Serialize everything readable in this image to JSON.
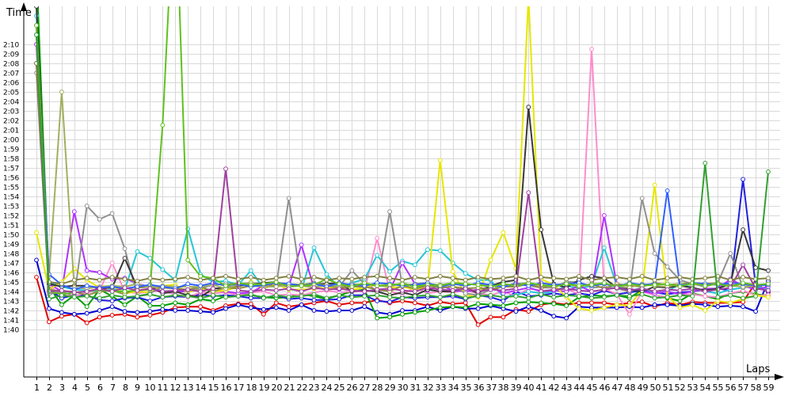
{
  "chart_data": {
    "type": "line",
    "title": "",
    "xlabel": "Laps",
    "ylabel": "Time",
    "x": [
      1,
      2,
      3,
      4,
      5,
      6,
      7,
      8,
      9,
      10,
      11,
      12,
      13,
      14,
      15,
      16,
      17,
      18,
      19,
      20,
      21,
      22,
      23,
      24,
      25,
      26,
      27,
      28,
      29,
      30,
      31,
      32,
      33,
      34,
      35,
      36,
      37,
      38,
      39,
      40,
      41,
      42,
      43,
      44,
      45,
      46,
      47,
      48,
      49,
      50,
      51,
      52,
      53,
      54,
      55,
      56,
      57,
      58,
      59
    ],
    "xlim": [
      1,
      59
    ],
    "ylim_seconds": [
      95,
      134
    ],
    "y_ticks_seconds": [
      100,
      101,
      102,
      103,
      104,
      105,
      106,
      107,
      108,
      109,
      110,
      111,
      112,
      113,
      114,
      115,
      116,
      117,
      118,
      119,
      120,
      121,
      122,
      123,
      124,
      125,
      126,
      127,
      128,
      129,
      130
    ],
    "y_tick_labels": [
      "1:40",
      "1:41",
      "1:42",
      "1:43",
      "1:44",
      "1:45",
      "1:46",
      "1:47",
      "1:48",
      "1:49",
      "1:50",
      "1:51",
      "1:52",
      "1:53",
      "1:54",
      "1:55",
      "1:56",
      "1:57",
      "1:58",
      "1:59",
      "2:00",
      "2:01",
      "2:02",
      "2:03",
      "2:04",
      "2:05",
      "2:06",
      "2:07",
      "2:08",
      "2:09",
      "2:10"
    ],
    "grid": true,
    "legend": "none",
    "series": [
      {
        "color": "#e00000",
        "values": [
          105.5,
          100.8,
          101.4,
          101.6,
          100.7,
          101.3,
          101.5,
          101.6,
          101.3,
          101.5,
          101.8,
          102.3,
          102.4,
          102.4,
          102.0,
          102.5,
          102.7,
          102.7,
          101.6,
          102.8,
          102.4,
          102.6,
          102.8,
          103.0,
          102.6,
          102.8,
          102.8,
          103.1,
          102.8,
          103.0,
          102.8,
          102.5,
          102.9,
          102.7,
          102.8,
          100.5,
          101.3,
          101.3,
          102.1,
          101.9,
          102.6,
          102.8,
          102.6,
          102.8,
          102.8,
          102.8,
          102.6,
          102.8,
          102.9,
          102.4,
          102.8,
          102.6,
          102.9,
          102.8,
          102.8,
          102.8,
          102.9,
          104.9,
          103.9
        ]
      },
      {
        "color": "#0000d0",
        "values": [
          107.3,
          102.2,
          101.8,
          101.6,
          101.7,
          102.0,
          102.4,
          101.9,
          101.8,
          101.9,
          102.1,
          102.0,
          102.0,
          101.9,
          101.8,
          102.2,
          102.6,
          102.3,
          102.1,
          102.3,
          102.0,
          102.6,
          102.0,
          101.9,
          102.0,
          102.0,
          102.4,
          101.8,
          101.6,
          102.0,
          102.0,
          102.4,
          102.0,
          102.4,
          102.2,
          102.2,
          102.5,
          102.2,
          101.9,
          102.4,
          102.0,
          101.4,
          101.2,
          102.4,
          102.3,
          102.3,
          102.3,
          102.4,
          102.3,
          102.6,
          102.6,
          102.5,
          102.7,
          102.6,
          102.4,
          102.5,
          102.4,
          101.9,
          105.1
        ]
      },
      {
        "color": "#009e00",
        "values": [
          138,
          104.5,
          102.6,
          103.6,
          102.4,
          104.2,
          103.5,
          102.6,
          103.5,
          102.5,
          102.5,
          102.8,
          102.6,
          103.2,
          103.0,
          103.5,
          103.6,
          103.6,
          103.4,
          103.3,
          103.4,
          103.7,
          103.5,
          103.2,
          103.6,
          104.0,
          104.2,
          101.2,
          101.3,
          101.6,
          101.8,
          102.0,
          102.3,
          102.4,
          102.3,
          102.7,
          102.6,
          102.5,
          102.8,
          102.9,
          102.8,
          102.7,
          102.5,
          103.4,
          103.6,
          103.5,
          103.6,
          103.3,
          104.2,
          103.6,
          103.3,
          103.0,
          103.8,
          103.5,
          103.2,
          103.8,
          104.0,
          103.7,
          103.6
        ]
      },
      {
        "color": "#2020e0",
        "values": [
          132,
          104.2,
          103.3,
          103.6,
          103.6,
          103.1,
          103.0,
          103.3,
          103.4,
          103.0,
          103.4,
          103.5,
          103.4,
          103.7,
          103.5,
          103.6,
          103.5,
          103.3,
          103.3,
          103.6,
          103.2,
          103.3,
          103.1,
          103.1,
          103.2,
          103.6,
          103.6,
          103.0,
          102.9,
          103.4,
          103.3,
          103.4,
          103.4,
          103.5,
          103.2,
          103.6,
          103.4,
          103.0,
          104.0,
          103.5,
          103.6,
          103.8,
          103.6,
          103.8,
          103.6,
          104.1,
          103.7,
          103.9,
          104.1,
          103.9,
          103.7,
          103.9,
          104.0,
          104.2,
          104.3,
          104.1,
          115.8,
          104.6,
          104.0
        ]
      },
      {
        "color": "#ff8ccc",
        "values": [
          130,
          104.6,
          103.6,
          103.5,
          103.9,
          104.1,
          107.0,
          104.0,
          103.8,
          104.0,
          104.0,
          103.7,
          103.4,
          103.9,
          103.8,
          103.9,
          103.6,
          103.9,
          104.0,
          103.6,
          103.7,
          103.6,
          103.9,
          104.1,
          103.9,
          104.0,
          104.0,
          109.6,
          104.0,
          103.7,
          104.4,
          103.8,
          104.0,
          103.9,
          104.1,
          103.8,
          103.6,
          104.0,
          103.5,
          104.3,
          104.1,
          104.1,
          104.3,
          103.7,
          129.5,
          104.3,
          103.7,
          101.6,
          104.0,
          103.6,
          103.4,
          103.6,
          103.7,
          103.5,
          103.4,
          103.8,
          104.1,
          103.6,
          103.6
        ]
      },
      {
        "color": "#26c6d6",
        "values": [
          133,
          105.0,
          104.5,
          104.2,
          104.1,
          104.0,
          104.2,
          104.2,
          108.2,
          107.5,
          106.3,
          105.2,
          110.6,
          105.8,
          105.0,
          105.1,
          104.7,
          106.2,
          104.3,
          104.8,
          104.2,
          104.1,
          108.6,
          105.8,
          104.4,
          104.9,
          105.3,
          107.8,
          106.1,
          107.2,
          106.8,
          108.4,
          108.3,
          107.0,
          105.9,
          105.2,
          105.2,
          103.4,
          103.6,
          104.0,
          103.8,
          104.0,
          104.6,
          104.3,
          104.6,
          108.6,
          104.6,
          104.0,
          104.4,
          103.8,
          104.0,
          104.8,
          104.4,
          104.0,
          103.8,
          104.2,
          104.4,
          104.6,
          104.2
        ]
      },
      {
        "color": "#b030ff",
        "values": [
          130,
          104.8,
          104.0,
          112.4,
          106.2,
          106.0,
          105.3,
          105.4,
          104.8,
          104.5,
          104.0,
          104.0,
          104.0,
          104.2,
          104.1,
          104.0,
          103.8,
          103.9,
          104.6,
          104.8,
          104.5,
          108.9,
          104.3,
          104.3,
          104.2,
          104.6,
          104.8,
          104.1,
          104.1,
          107.0,
          104.8,
          104.1,
          104.7,
          104.1,
          104.0,
          104.2,
          104.5,
          103.8,
          104.1,
          104.4,
          104.0,
          104.1,
          104.0,
          104.6,
          104.0,
          112.0,
          104.7,
          104.3,
          104.0,
          103.8,
          104.0,
          103.7,
          104.0,
          104.3,
          104.3,
          105.3,
          104.6,
          104.2,
          104.5
        ]
      },
      {
        "color": "#e6e600",
        "values": [
          110.2,
          104.2,
          105.0,
          106.4,
          105.2,
          104.4,
          104.6,
          103.8,
          104.0,
          103.9,
          104.6,
          104.7,
          103.9,
          104.3,
          104.0,
          104.1,
          104.5,
          105.0,
          104.3,
          104.8,
          104.2,
          104.2,
          104.3,
          104.4,
          104.3,
          104.2,
          104.4,
          104.7,
          104.4,
          104.5,
          104.2,
          104.4,
          117.8,
          106.1,
          103.6,
          103.4,
          107.3,
          110.2,
          106.4,
          135,
          105.3,
          104.7,
          103.4,
          102.2,
          102.0,
          102.3,
          102.6,
          102.5,
          104.2,
          115.2,
          103.5,
          102.3,
          102.6,
          102.0,
          103.0,
          102.8,
          103.2,
          103.6,
          103.4
        ]
      },
      {
        "color": "#909090",
        "values": [
          127,
          103.7,
          104.0,
          103.5,
          113.0,
          111.6,
          112.2,
          108.5,
          103.5,
          103.8,
          104.5,
          104.3,
          104.1,
          104.3,
          104.7,
          104.8,
          104.8,
          104.9,
          104.8,
          104.5,
          113.8,
          104.7,
          104.4,
          104.8,
          104.5,
          106.2,
          104.8,
          104.7,
          112.4,
          104.6,
          104.8,
          104.9,
          104.3,
          104.6,
          103.8,
          103.6,
          104.2,
          104.5,
          104.9,
          104.6,
          104.4,
          104.4,
          105.0,
          105.0,
          104.4,
          104.5,
          104.3,
          104.0,
          113.8,
          108.0,
          106.6,
          105.2,
          104.8,
          104.5,
          104.9,
          108.0,
          104.4,
          104.6,
          104.8
        ]
      },
      {
        "color": "#383838",
        "values": [
          134,
          104.8,
          104.5,
          104.6,
          104.6,
          104.3,
          104.4,
          107.5,
          104.4,
          104.5,
          103.8,
          104.0,
          103.6,
          103.4,
          104.3,
          104.4,
          104.6,
          104.7,
          104.9,
          105.0,
          104.6,
          104.6,
          104.8,
          104.8,
          104.9,
          104.0,
          104.1,
          104.0,
          103.6,
          103.9,
          103.6,
          104.2,
          104.0,
          104.0,
          104.4,
          103.8,
          104.6,
          105.0,
          105.2,
          123.4,
          110.5,
          104.8,
          104.4,
          105.2,
          105.6,
          105.4,
          104.4,
          104.2,
          104.0,
          104.5,
          104.4,
          104.6,
          104.4,
          104.1,
          104.3,
          104.8,
          110.5,
          106.5,
          106.2
        ]
      },
      {
        "color": "#909040",
        "values": [
          128,
          104.2,
          104.0,
          104.0,
          103.6,
          104.0,
          104.1,
          103.7,
          104.4,
          104.5,
          104.4,
          104.3,
          104.2,
          104.5,
          104.0,
          104.4,
          104.3,
          104.6,
          104.5,
          104.6,
          104.8,
          104.7,
          104.9,
          104.6,
          104.4,
          104.5,
          104.5,
          104.2,
          104.0,
          104.6,
          104.3,
          104.6,
          104.4,
          104.5,
          104.3,
          104.4,
          104.2,
          104.5,
          104.5,
          104.8,
          104.4,
          104.7,
          104.8,
          104.5,
          104.8,
          104.3,
          104.8,
          104.6,
          104.5,
          104.9,
          104.7,
          104.8,
          104.9,
          104.8,
          104.9,
          104.6,
          104.8,
          104.5,
          104.8
        ]
      },
      {
        "color": "#a0b060",
        "values": [
          132,
          105.5,
          125,
          104.4,
          104.3,
          104.5,
          104.6,
          104.5,
          104.8,
          104.4,
          104.6,
          104.5,
          104.5,
          104.5,
          104.7,
          104.3,
          104.7,
          104.9,
          104.5,
          104.5,
          104.7,
          104.6,
          104.4,
          104.7,
          104.5,
          104.8,
          104.7,
          104.6,
          104.5,
          104.9,
          104.6,
          104.8,
          104.7,
          104.9,
          104.8,
          104.7,
          104.6,
          104.5,
          104.8,
          104.9,
          104.6,
          104.7,
          104.8,
          104.5,
          104.8,
          104.8,
          104.6,
          104.4,
          104.8,
          104.6,
          104.5,
          104.8,
          104.7,
          104.8,
          104.8,
          104.6,
          104.5,
          104.6,
          104.7
        ]
      },
      {
        "color": "#3060ff",
        "values": [
          131,
          105.8,
          104.7,
          104.2,
          104.6,
          104.4,
          104.5,
          104.3,
          104.5,
          104.7,
          104.5,
          104.3,
          104.8,
          104.6,
          104.9,
          104.6,
          104.8,
          104.5,
          104.7,
          104.9,
          104.8,
          104.6,
          104.8,
          104.5,
          104.9,
          104.7,
          104.6,
          104.9,
          104.8,
          104.6,
          104.7,
          104.9,
          104.5,
          104.8,
          104.6,
          104.9,
          104.7,
          104.5,
          104.8,
          104.6,
          104.9,
          104.7,
          104.8,
          104.9,
          104.6,
          104.8,
          104.5,
          104.9,
          104.7,
          104.8,
          114.6,
          104.6,
          104.9,
          104.8,
          104.7,
          104.9,
          104.8,
          104.6,
          104.7
        ]
      },
      {
        "color": "#60c020",
        "values": [
          132,
          104.0,
          103.7,
          103.9,
          104.0,
          104.2,
          104.0,
          104.0,
          104.1,
          104.2,
          121.5,
          148,
          107.3,
          105.6,
          105.4,
          104.6,
          104.9,
          104.7,
          104.8,
          105.0,
          104.5,
          104.6,
          104.7,
          105.3,
          104.8,
          104.5,
          104.9,
          104.6,
          104.7,
          104.8,
          104.5,
          104.7,
          104.6,
          104.9,
          104.8,
          104.7,
          104.5,
          104.8,
          104.6,
          104.9,
          104.7,
          104.5,
          104.8,
          104.6,
          104.7,
          104.9,
          104.5,
          104.8,
          104.6,
          104.7,
          104.8,
          104.5,
          104.9,
          104.6,
          104.8,
          104.5,
          104.9,
          104.7,
          104.8
        ]
      },
      {
        "color": "#a040a0",
        "values": [
          128,
          104.0,
          104.1,
          103.9,
          104.0,
          104.3,
          104.0,
          104.4,
          104.1,
          104.3,
          104.0,
          104.1,
          104.2,
          104.0,
          104.3,
          116.9,
          104.1,
          104.0,
          104.2,
          104.1,
          104.3,
          104.0,
          104.4,
          104.2,
          104.3,
          104.1,
          104.0,
          104.2,
          104.3,
          104.1,
          104.0,
          104.4,
          104.2,
          104.1,
          104.3,
          104.0,
          104.2,
          104.1,
          104.3,
          114.4,
          104.0,
          104.2,
          104.3,
          104.1,
          104.0,
          104.2,
          104.4,
          104.1,
          104.3,
          104.0,
          104.2,
          104.1,
          104.3,
          104.0,
          104.2,
          104.4,
          106.8,
          104.3,
          104.1
        ]
      },
      {
        "color": "#808040",
        "values": [
          128,
          105.0,
          104.8,
          105.2,
          105.4,
          105.2,
          105.5,
          105.3,
          105.1,
          105.4,
          105.2,
          105.3,
          105.5,
          105.2,
          105.4,
          105.6,
          105.3,
          105.5,
          105.2,
          105.4,
          105.6,
          105.3,
          105.5,
          105.2,
          105.4,
          105.3,
          105.5,
          105.6,
          105.4,
          105.2,
          105.5,
          105.3,
          105.6,
          105.4,
          105.2,
          105.5,
          105.3,
          105.4,
          105.6,
          105.2,
          105.5,
          105.4,
          105.3,
          105.6,
          105.2,
          105.4,
          105.5,
          105.3,
          105.6,
          105.2,
          105.4,
          105.5,
          105.3,
          105.4,
          105.6,
          105.2,
          105.5,
          105.3,
          105.4
        ]
      },
      {
        "color": "#30a030",
        "values": [
          131,
          103.2,
          103.6,
          103.4,
          103.5,
          103.3,
          103.6,
          103.4,
          103.5,
          103.7,
          103.4,
          103.6,
          103.5,
          103.3,
          103.6,
          103.4,
          103.5,
          103.7,
          103.3,
          103.6,
          103.4,
          103.5,
          103.7,
          103.3,
          103.6,
          103.4,
          103.5,
          103.6,
          103.4,
          103.3,
          103.5,
          103.6,
          103.4,
          103.7,
          103.3,
          103.5,
          103.6,
          103.4,
          103.5,
          103.3,
          103.7,
          103.4,
          103.6,
          103.5,
          103.3,
          103.4,
          103.6,
          103.5,
          103.7,
          103.3,
          103.4,
          103.6,
          103.5,
          117.5,
          103.4,
          103.6,
          103.3,
          103.5,
          116.6
        ]
      }
    ]
  }
}
